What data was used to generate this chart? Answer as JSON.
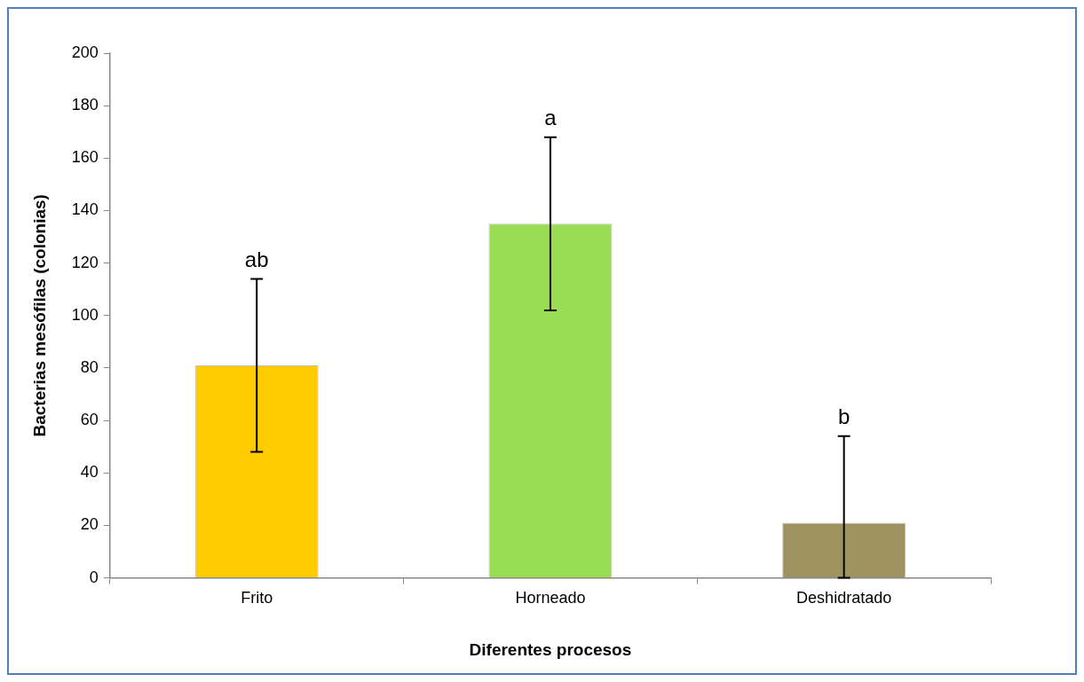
{
  "chart_data": {
    "type": "bar",
    "xlabel": "Diferentes procesos",
    "ylabel": "Bacterias mesófilas (colonias)",
    "categories": [
      "Frito",
      "Horneado",
      "Deshidratado"
    ],
    "values": [
      81,
      135,
      21
    ],
    "colors": [
      "#ffcc00",
      "#99dd55",
      "#9e9260"
    ],
    "errors": [
      [
        48,
        114
      ],
      [
        102,
        168
      ],
      [
        0,
        54
      ]
    ],
    "ylim": [
      0,
      200
    ],
    "yticks": [
      0,
      20,
      40,
      60,
      80,
      100,
      120,
      140,
      160,
      180,
      200
    ],
    "grid": false,
    "legend": false,
    "annotations": [
      {
        "text": "ab",
        "x": "Frito",
        "y": 114
      },
      {
        "text": "a",
        "x": "Horneado",
        "y": 168
      },
      {
        "text": "b",
        "x": "Deshidratado",
        "y": 54
      }
    ]
  }
}
